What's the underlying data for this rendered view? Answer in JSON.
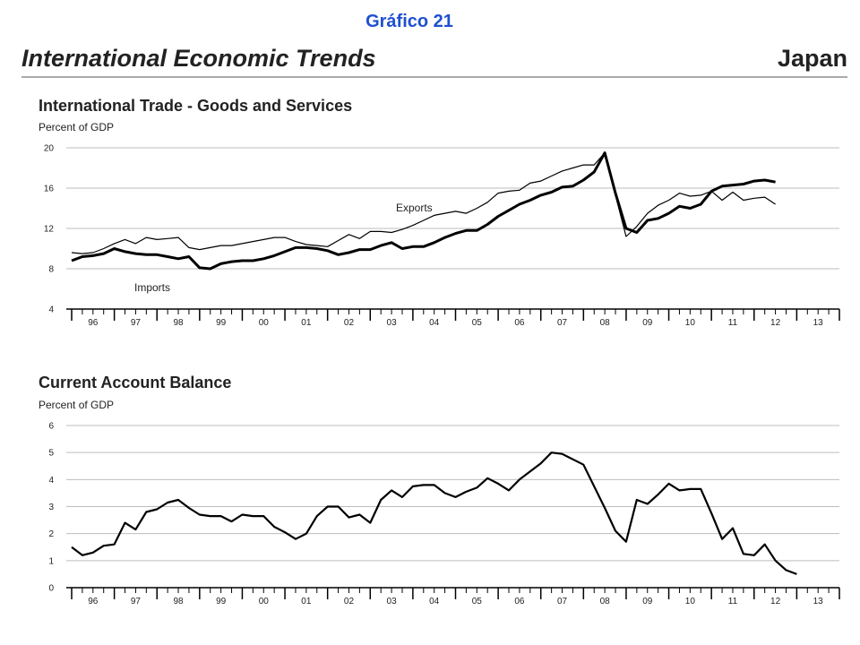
{
  "header": {
    "label": "Gráfico 21",
    "title": "International Economic Trends",
    "country": "Japan"
  },
  "chart_data": [
    {
      "type": "line",
      "title": "International Trade - Goods and Services",
      "y_label": "Percent of GDP",
      "x": [
        1996,
        1996.25,
        1996.5,
        1996.75,
        1997,
        1997.25,
        1997.5,
        1997.75,
        1998,
        1998.25,
        1998.5,
        1998.75,
        1999,
        1999.25,
        1999.5,
        1999.75,
        2000,
        2000.25,
        2000.5,
        2000.75,
        2001,
        2001.25,
        2001.5,
        2001.75,
        2002,
        2002.25,
        2002.5,
        2002.75,
        2003,
        2003.25,
        2003.5,
        2003.75,
        2004,
        2004.25,
        2004.5,
        2004.75,
        2005,
        2005.25,
        2005.5,
        2005.75,
        2006,
        2006.25,
        2006.5,
        2006.75,
        2007,
        2007.25,
        2007.5,
        2007.75,
        2008,
        2008.25,
        2008.5,
        2008.75,
        2009,
        2009.25,
        2009.5,
        2009.75,
        2010,
        2010.25,
        2010.5,
        2010.75,
        2011,
        2011.25,
        2011.5,
        2011.75,
        2012,
        2012.25,
        2012.5
      ],
      "series": [
        {
          "name": "Exports",
          "color": "#000000",
          "width": "thin",
          "values": [
            9.6,
            9.5,
            9.6,
            10.0,
            10.5,
            10.9,
            10.5,
            11.1,
            10.9,
            11.0,
            11.1,
            10.1,
            9.9,
            10.1,
            10.3,
            10.3,
            10.5,
            10.7,
            10.9,
            11.1,
            11.1,
            10.7,
            10.4,
            10.3,
            10.2,
            10.8,
            11.4,
            11.0,
            11.7,
            11.7,
            11.6,
            11.9,
            12.3,
            12.8,
            13.3,
            13.5,
            13.7,
            13.5,
            14.0,
            14.6,
            15.5,
            15.7,
            15.8,
            16.5,
            16.7,
            17.2,
            17.7,
            18.0,
            18.3,
            18.3,
            19.5,
            15.3,
            11.2,
            12.2,
            13.5,
            14.3,
            14.8,
            15.5,
            15.2,
            15.3,
            15.7,
            14.8,
            15.6,
            14.8,
            15.0,
            15.1,
            14.4
          ]
        },
        {
          "name": "Imports",
          "color": "#000000",
          "width": "thick",
          "values": [
            8.8,
            9.2,
            9.3,
            9.5,
            10.0,
            9.7,
            9.5,
            9.4,
            9.4,
            9.2,
            9.0,
            9.2,
            8.1,
            8.0,
            8.5,
            8.7,
            8.8,
            8.8,
            9.0,
            9.3,
            9.7,
            10.1,
            10.1,
            10.0,
            9.8,
            9.4,
            9.6,
            9.9,
            9.9,
            10.3,
            10.6,
            10.0,
            10.2,
            10.2,
            10.6,
            11.1,
            11.5,
            11.8,
            11.8,
            12.4,
            13.2,
            13.8,
            14.4,
            14.8,
            15.3,
            15.6,
            16.1,
            16.2,
            16.8,
            17.6,
            19.5,
            15.5,
            12.0,
            11.6,
            12.8,
            13.0,
            13.5,
            14.2,
            14.0,
            14.4,
            15.7,
            16.2,
            16.3,
            16.4,
            16.7,
            16.8,
            16.6
          ]
        }
      ],
      "xlim": [
        1996,
        2014
      ],
      "ylim": [
        4,
        20
      ],
      "yticks": [
        4,
        8,
        12,
        16,
        20
      ],
      "xticks": [
        {
          "value": 1996.5,
          "label": "96"
        },
        {
          "value": 1997.5,
          "label": "97"
        },
        {
          "value": 1998.5,
          "label": "98"
        },
        {
          "value": 1999.5,
          "label": "99"
        },
        {
          "value": 2000.5,
          "label": "00"
        },
        {
          "value": 2001.5,
          "label": "01"
        },
        {
          "value": 2002.5,
          "label": "02"
        },
        {
          "value": 2003.5,
          "label": "03"
        },
        {
          "value": 2004.5,
          "label": "04"
        },
        {
          "value": 2005.5,
          "label": "05"
        },
        {
          "value": 2006.5,
          "label": "06"
        },
        {
          "value": 2007.5,
          "label": "07"
        },
        {
          "value": 2008.5,
          "label": "08"
        },
        {
          "value": 2009.5,
          "label": "09"
        },
        {
          "value": 2010.5,
          "label": "10"
        },
        {
          "value": 2011.5,
          "label": "11"
        },
        {
          "value": 2012.5,
          "label": "12"
        },
        {
          "value": 2013.5,
          "label": "13"
        }
      ],
      "grid": true
    },
    {
      "type": "line",
      "title": "Current Account Balance",
      "y_label": "Percent of GDP",
      "x": [
        1996,
        1996.25,
        1996.5,
        1996.75,
        1997,
        1997.25,
        1997.5,
        1997.75,
        1998,
        1998.25,
        1998.5,
        1998.75,
        1999,
        1999.25,
        1999.5,
        1999.75,
        2000,
        2000.25,
        2000.5,
        2000.75,
        2001,
        2001.25,
        2001.5,
        2001.75,
        2002,
        2002.25,
        2002.5,
        2002.75,
        2003,
        2003.25,
        2003.5,
        2003.75,
        2004,
        2004.25,
        2004.5,
        2004.75,
        2005,
        2005.25,
        2005.5,
        2005.75,
        2006,
        2006.25,
        2006.5,
        2006.75,
        2007,
        2007.25,
        2007.5,
        2007.75,
        2008,
        2008.25,
        2008.5,
        2008.75,
        2009,
        2009.25,
        2009.5,
        2009.75,
        2010,
        2010.25,
        2010.5,
        2010.75,
        2011,
        2011.25,
        2011.5,
        2011.75,
        2012,
        2012.25,
        2012.5,
        2012.75,
        2013
      ],
      "series": [
        {
          "color": "#000000",
          "width": "medium",
          "values": [
            1.5,
            1.2,
            1.3,
            1.55,
            1.6,
            2.4,
            2.15,
            2.8,
            2.9,
            3.15,
            3.25,
            2.95,
            2.7,
            2.65,
            2.65,
            2.45,
            2.7,
            2.65,
            2.65,
            2.25,
            2.05,
            1.8,
            2.0,
            2.65,
            3.0,
            3.0,
            2.6,
            2.7,
            2.4,
            3.25,
            3.6,
            3.35,
            3.75,
            3.8,
            3.8,
            3.5,
            3.35,
            3.55,
            3.7,
            4.05,
            3.85,
            3.6,
            4.0,
            4.3,
            4.6,
            5.0,
            4.95,
            4.75,
            4.55,
            3.75,
            2.95,
            2.1,
            1.7,
            3.25,
            3.1,
            3.45,
            3.85,
            3.6,
            3.65,
            3.65,
            2.75,
            1.8,
            2.2,
            1.25,
            1.2,
            1.6,
            1.0,
            0.65,
            0.5
          ]
        }
      ],
      "xlim": [
        1996,
        2014
      ],
      "ylim": [
        0,
        6
      ],
      "yticks": [
        0,
        1,
        2,
        3,
        4,
        5,
        6
      ],
      "xticks": [
        {
          "value": 1996.5,
          "label": "96"
        },
        {
          "value": 1997.5,
          "label": "97"
        },
        {
          "value": 1998.5,
          "label": "98"
        },
        {
          "value": 1999.5,
          "label": "99"
        },
        {
          "value": 2000.5,
          "label": "00"
        },
        {
          "value": 2001.5,
          "label": "01"
        },
        {
          "value": 2002.5,
          "label": "02"
        },
        {
          "value": 2003.5,
          "label": "03"
        },
        {
          "value": 2004.5,
          "label": "04"
        },
        {
          "value": 2005.5,
          "label": "05"
        },
        {
          "value": 2006.5,
          "label": "06"
        },
        {
          "value": 2007.5,
          "label": "07"
        },
        {
          "value": 2008.5,
          "label": "08"
        },
        {
          "value": 2009.5,
          "label": "09"
        },
        {
          "value": 2010.5,
          "label": "10"
        },
        {
          "value": 2011.5,
          "label": "11"
        },
        {
          "value": 2012.5,
          "label": "12"
        },
        {
          "value": 2013.5,
          "label": "13"
        }
      ],
      "grid": true
    }
  ]
}
